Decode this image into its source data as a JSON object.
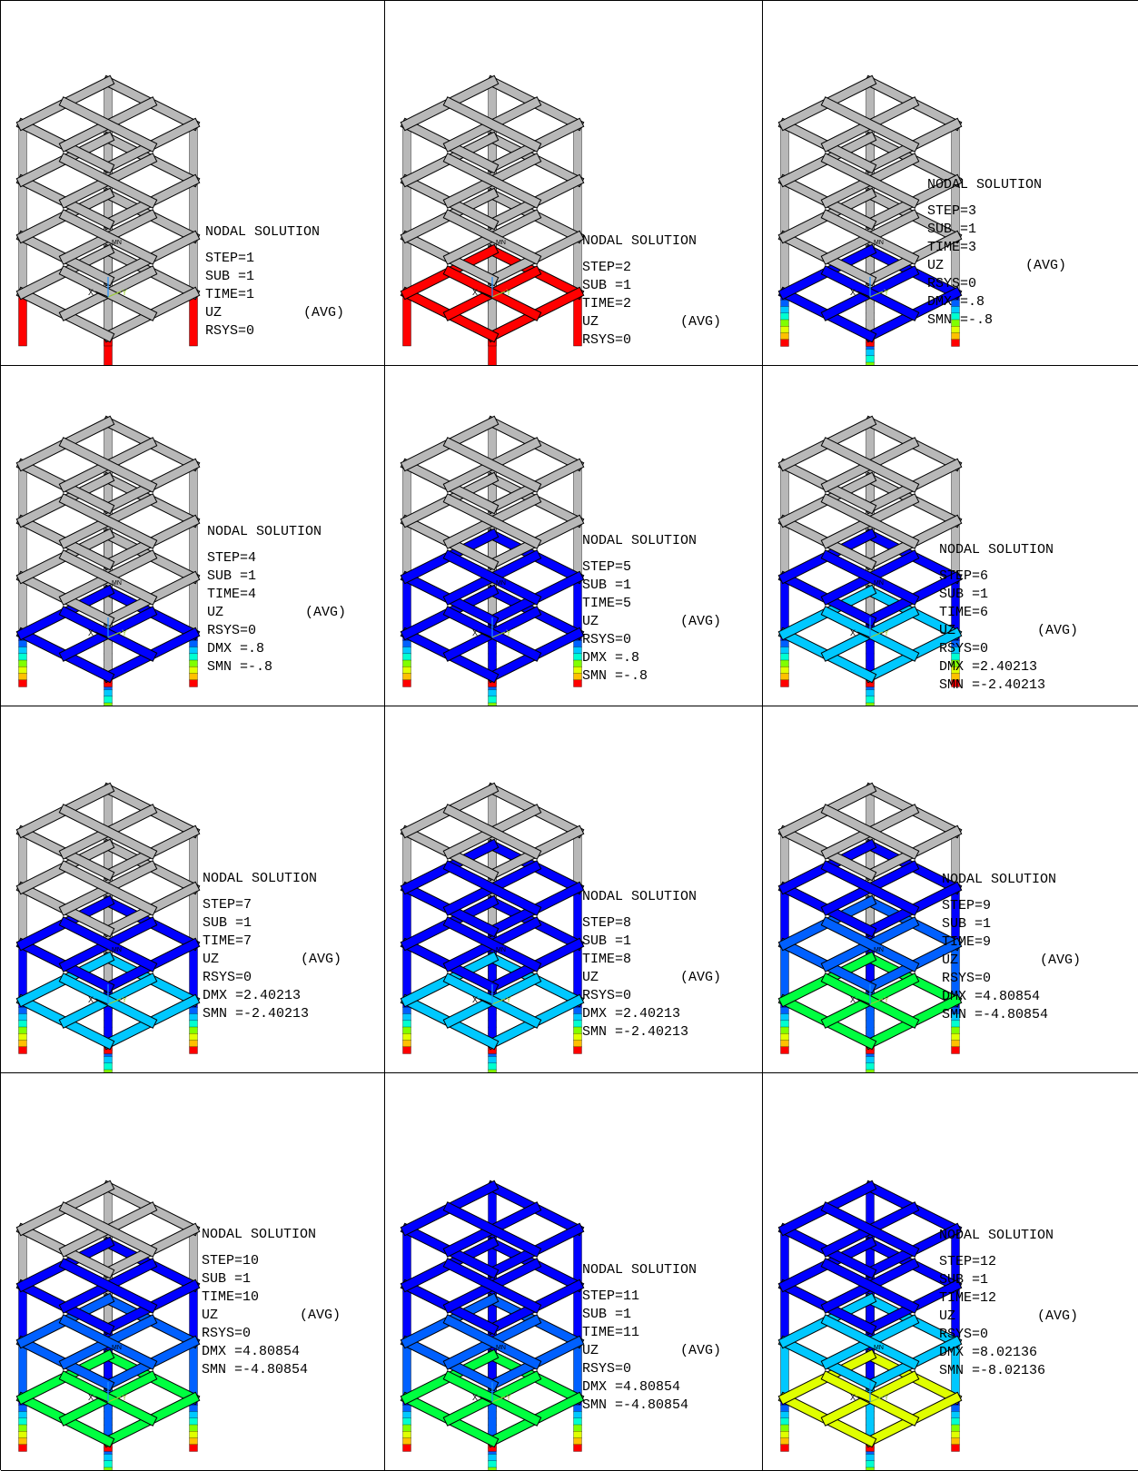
{
  "colors": {
    "undeformed": "#b8b8b8",
    "contour": [
      "#0000ff",
      "#0060ff",
      "#00c8ff",
      "#00ffd0",
      "#00ff40",
      "#80ff00",
      "#e0ff00",
      "#ffc000",
      "#ff6000",
      "#ff0000"
    ]
  },
  "panels": [
    {
      "title": "NODAL SOLUTION",
      "step": "STEP=1",
      "sub": "SUB =1",
      "time": "TIME=1",
      "uz": "UZ",
      "avg": "(AVG)",
      "rsys": "RSYS=0",
      "dmx": "",
      "smn": "",
      "node_label": "MN",
      "levels": [
        "gray",
        "gray",
        "gray",
        "gray"
      ],
      "legs": [
        "red"
      ],
      "hidden_beams": []
    },
    {
      "title": "NODAL SOLUTION",
      "step": "STEP=2",
      "sub": "SUB =1",
      "time": "TIME=2",
      "uz": "UZ",
      "avg": "(AVG)",
      "rsys": "RSYS=0",
      "dmx": "",
      "smn": "",
      "node_label": "MN",
      "levels": [
        "red",
        "gray",
        "gray",
        "gray"
      ],
      "legs": [
        "red"
      ],
      "hidden_beams": []
    },
    {
      "title": "NODAL SOLUTION",
      "step": "STEP=3",
      "sub": "SUB =1",
      "time": "TIME=3",
      "uz": "UZ",
      "avg": "(AVG)",
      "rsys": "RSYS=0",
      "dmx": "DMX =.8",
      "smn": "SMN =-.8",
      "node_label": "MN",
      "levels": [
        "blue",
        "gray",
        "gray",
        "gray"
      ],
      "legs": [
        "gradient"
      ],
      "hidden_beams": []
    },
    {
      "title": "NODAL SOLUTION",
      "step": "STEP=4",
      "sub": "SUB =1",
      "time": "TIME=4",
      "uz": "UZ",
      "avg": "(AVG)",
      "rsys": "RSYS=0",
      "dmx": "DMX =.8",
      "smn": "SMN =-.8",
      "node_label": "MN",
      "levels": [
        "blue",
        "gray",
        "gray",
        "gray"
      ],
      "legs": [
        "gradient"
      ],
      "hidden_beams": []
    },
    {
      "title": "NODAL SOLUTION",
      "step": "STEP=5",
      "sub": "SUB =1",
      "time": "TIME=5",
      "uz": "UZ",
      "avg": "(AVG)",
      "rsys": "RSYS=0",
      "dmx": "DMX =.8",
      "smn": "SMN =-.8",
      "node_label": "MN",
      "levels": [
        "blue",
        "blue",
        "gray",
        "gray"
      ],
      "legs": [
        "gradient"
      ],
      "hidden_beams": []
    },
    {
      "title": "NODAL SOLUTION",
      "step": "STEP=6",
      "sub": "SUB =1",
      "time": "TIME=6",
      "uz": "UZ",
      "avg": "(AVG)",
      "rsys": "RSYS=0",
      "dmx": "DMX =2.40213",
      "smn": "SMN =-2.40213",
      "node_label": "MN",
      "levels": [
        "cyan",
        "blue",
        "gray",
        "gray"
      ],
      "legs": [
        "gradient"
      ],
      "hidden_beams": []
    },
    {
      "title": "NODAL SOLUTION",
      "step": "STEP=7",
      "sub": "SUB =1",
      "time": "TIME=7",
      "uz": "UZ",
      "avg": "(AVG)",
      "rsys": "RSYS=0",
      "dmx": "DMX =2.40213",
      "smn": "SMN =-2.40213",
      "node_label": "MN",
      "levels": [
        "cyan",
        "blue",
        "gray",
        "gray"
      ],
      "legs": [
        "gradient"
      ],
      "hidden_beams": []
    },
    {
      "title": "NODAL SOLUTION",
      "step": "STEP=8",
      "sub": "SUB =1",
      "time": "TIME=8",
      "uz": "UZ",
      "avg": "(AVG)",
      "rsys": "RSYS=0",
      "dmx": "DMX =2.40213",
      "smn": "SMN =-2.40213",
      "node_label": "MN",
      "levels": [
        "cyan",
        "blue",
        "blue",
        "gray"
      ],
      "legs": [
        "gradient"
      ],
      "hidden_beams": []
    },
    {
      "title": "NODAL SOLUTION",
      "step": "STEP=9",
      "sub": "SUB =1",
      "time": "TIME=9",
      "uz": "UZ",
      "avg": "(AVG)",
      "rsys": "RSYS=0",
      "dmx": "DMX =4.80854",
      "smn": "SMN =-4.80854",
      "node_label": "MN",
      "levels": [
        "green",
        "sky",
        "blue",
        "gray"
      ],
      "legs": [
        "gradient"
      ],
      "hidden_beams": []
    },
    {
      "title": "NODAL SOLUTION",
      "step": "STEP=10",
      "sub": "SUB =1",
      "time": "TIME=10",
      "uz": "UZ",
      "avg": "(AVG)",
      "rsys": "RSYS=0",
      "dmx": "DMX =4.80854",
      "smn": "SMN =-4.80854",
      "node_label": "MN",
      "levels": [
        "green",
        "sky",
        "blue",
        "gray"
      ],
      "legs": [
        "gradient"
      ],
      "hidden_beams": []
    },
    {
      "title": "NODAL SOLUTION",
      "step": "STEP=11",
      "sub": "SUB =1",
      "time": "TIME=11",
      "uz": "UZ",
      "avg": "(AVG)",
      "rsys": "RSYS=0",
      "dmx": "DMX =4.80854",
      "smn": "SMN =-4.80854",
      "node_label": "MN",
      "levels": [
        "green",
        "sky",
        "blue",
        "blue"
      ],
      "legs": [
        "gradient"
      ],
      "hidden_beams": []
    },
    {
      "title": "NODAL SOLUTION",
      "step": "STEP=12",
      "sub": "SUB =1",
      "time": "TIME=12",
      "uz": "UZ",
      "avg": "(AVG)",
      "rsys": "RSYS=0",
      "dmx": "DMX =8.02136",
      "smn": "SMN =-8.02136",
      "node_label": "MN",
      "levels": [
        "yellowgreen",
        "cyan",
        "blue",
        "blue"
      ],
      "legs": [
        "gradient"
      ],
      "hidden_beams": []
    }
  ]
}
